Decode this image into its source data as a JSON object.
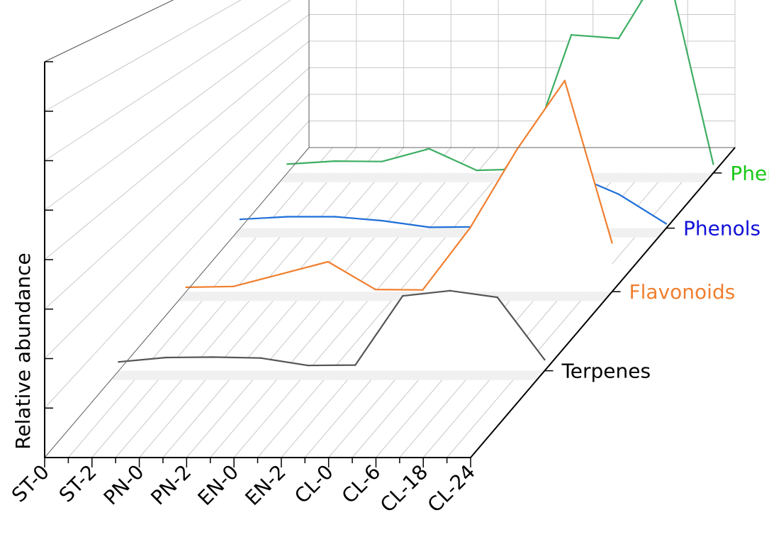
{
  "chart_data": {
    "type": "line",
    "ylabel": "Relative abundance",
    "categories": [
      "ST-0",
      "ST-2",
      "PN-0",
      "PN-2",
      "EN-0",
      "EN-2",
      "CL-0",
      "CL-6",
      "CL-18",
      "CL-24"
    ],
    "series": [
      {
        "name": "Terpenes",
        "color": "#555555",
        "values": [
          20,
          30,
          31,
          29,
          12,
          13,
          170,
          182,
          167,
          25
        ]
      },
      {
        "name": "Flavonoids",
        "color": "#F07F2F",
        "values": [
          10,
          12,
          40,
          68,
          5,
          4,
          145,
          325,
          480,
          111
        ]
      },
      {
        "name": "Phenols",
        "color": "#1E6FD8",
        "values": [
          20,
          26,
          26,
          17,
          2,
          3,
          147,
          123,
          77,
          10
        ]
      },
      {
        "name": "Phenylpropane",
        "color": "#3DAE62",
        "values": [
          20,
          27,
          26,
          55,
          6,
          9,
          314,
          306,
          480,
          20
        ]
      }
    ],
    "label_colors": {
      "Terpenes": "#000000",
      "Flavonoids": "#F07F2F",
      "Phenols": "#1010D8",
      "Phenylpropane": "#18C818"
    },
    "ylim": [
      0,
      900
    ],
    "grid": true,
    "projection": "3d"
  }
}
